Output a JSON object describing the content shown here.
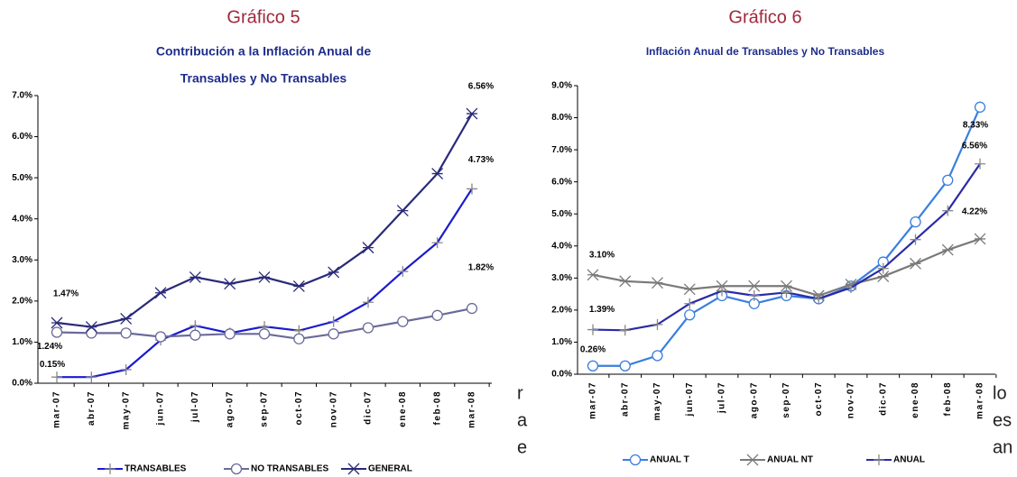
{
  "background_text": {
    "left": [
      "r",
      "a",
      "e"
    ],
    "right": [
      "lo",
      "es",
      "an"
    ]
  },
  "chart_data": [
    {
      "type": "line",
      "heading": "Gráfico 5",
      "title": [
        "Contribución a la Inflación Anual de",
        "Transables y No Transables"
      ],
      "categories": [
        "mar-07",
        "abr-07",
        "may-07",
        "jun-07",
        "jul-07",
        "ago-07",
        "sep-07",
        "oct-07",
        "nov-07",
        "dic-07",
        "ene-08",
        "feb-08",
        "mar-08"
      ],
      "ylim": [
        0,
        7
      ],
      "yticks": [
        {
          "value": 0,
          "label": "0.0%"
        },
        {
          "value": 1,
          "label": "1.0%"
        },
        {
          "value": 2,
          "label": "2.0%"
        },
        {
          "value": 3,
          "label": "3.0%"
        },
        {
          "value": 4,
          "label": "4.0%"
        },
        {
          "value": 5,
          "label": "5.0%"
        },
        {
          "value": 6,
          "label": "6.0%"
        },
        {
          "value": 7,
          "label": "7.0%"
        }
      ],
      "series": [
        {
          "name": "TRANSABLES",
          "color": "#1a1ad0",
          "marker": "plus",
          "values": [
            0.15,
            0.15,
            0.33,
            1.05,
            1.4,
            1.22,
            1.38,
            1.28,
            1.5,
            1.97,
            2.72,
            3.42,
            4.73
          ],
          "value_labels": [
            "0.15%",
            null,
            null,
            null,
            null,
            null,
            null,
            null,
            null,
            null,
            null,
            null,
            "4.73%"
          ]
        },
        {
          "name": "NO TRANSABLES",
          "color": "#6a6a9a",
          "marker": "circle",
          "values": [
            1.24,
            1.22,
            1.22,
            1.13,
            1.17,
            1.2,
            1.2,
            1.08,
            1.2,
            1.35,
            1.5,
            1.65,
            1.82
          ],
          "value_labels": [
            "1.24%",
            null,
            null,
            null,
            null,
            null,
            null,
            null,
            null,
            null,
            null,
            null,
            "1.82%"
          ]
        },
        {
          "name": "GENERAL",
          "color": "#2a2a78",
          "marker": "star",
          "values": [
            1.47,
            1.37,
            1.57,
            2.2,
            2.58,
            2.42,
            2.58,
            2.36,
            2.7,
            3.3,
            4.2,
            5.1,
            6.56
          ],
          "value_labels": [
            "1.47%",
            null,
            null,
            null,
            null,
            null,
            null,
            null,
            null,
            null,
            null,
            null,
            "6.56%"
          ]
        }
      ]
    },
    {
      "type": "line",
      "heading": "Gráfico 6",
      "title": [
        "Inflación Anual de Transables y No Transables"
      ],
      "categories": [
        "mar-07",
        "abr-07",
        "may-07",
        "jun-07",
        "jul-07",
        "ago-07",
        "sep-07",
        "oct-07",
        "nov-07",
        "dic-07",
        "ene-08",
        "feb-08",
        "mar-08"
      ],
      "ylim": [
        0,
        9
      ],
      "yticks": [
        {
          "value": 0,
          "label": "0.0%"
        },
        {
          "value": 1,
          "label": "1.0%"
        },
        {
          "value": 2,
          "label": "2.0%"
        },
        {
          "value": 3,
          "label": "3.0%"
        },
        {
          "value": 4,
          "label": "4.0%"
        },
        {
          "value": 5,
          "label": "5.0%"
        },
        {
          "value": 6,
          "label": "6.0%"
        },
        {
          "value": 7,
          "label": "7.0%"
        },
        {
          "value": 8,
          "label": "8.0%"
        },
        {
          "value": 9,
          "label": "9.0%"
        }
      ],
      "series": [
        {
          "name": "ANUAL T",
          "color": "#3a7ee0",
          "marker": "circle",
          "values": [
            0.26,
            0.26,
            0.58,
            1.85,
            2.45,
            2.2,
            2.45,
            2.35,
            2.75,
            3.5,
            4.75,
            6.05,
            8.33
          ],
          "value_labels": [
            "0.26%",
            null,
            null,
            null,
            null,
            null,
            null,
            null,
            null,
            null,
            null,
            null,
            "8.33%"
          ]
        },
        {
          "name": "ANUAL NT",
          "color": "#7a7a7a",
          "marker": "star",
          "values": [
            3.1,
            2.9,
            2.85,
            2.65,
            2.75,
            2.75,
            2.75,
            2.45,
            2.8,
            3.05,
            3.45,
            3.88,
            4.22
          ],
          "value_labels": [
            "3.10%",
            null,
            null,
            null,
            null,
            null,
            null,
            null,
            null,
            null,
            null,
            null,
            "4.22%"
          ]
        },
        {
          "name": "ANUAL",
          "color": "#2a2aa8",
          "marker": "plus",
          "values": [
            1.39,
            1.37,
            1.55,
            2.2,
            2.6,
            2.45,
            2.55,
            2.35,
            2.7,
            3.3,
            4.2,
            5.1,
            6.56
          ],
          "value_labels": [
            "1.39%",
            null,
            null,
            null,
            null,
            null,
            null,
            null,
            null,
            null,
            null,
            null,
            "6.56%"
          ]
        }
      ]
    }
  ]
}
